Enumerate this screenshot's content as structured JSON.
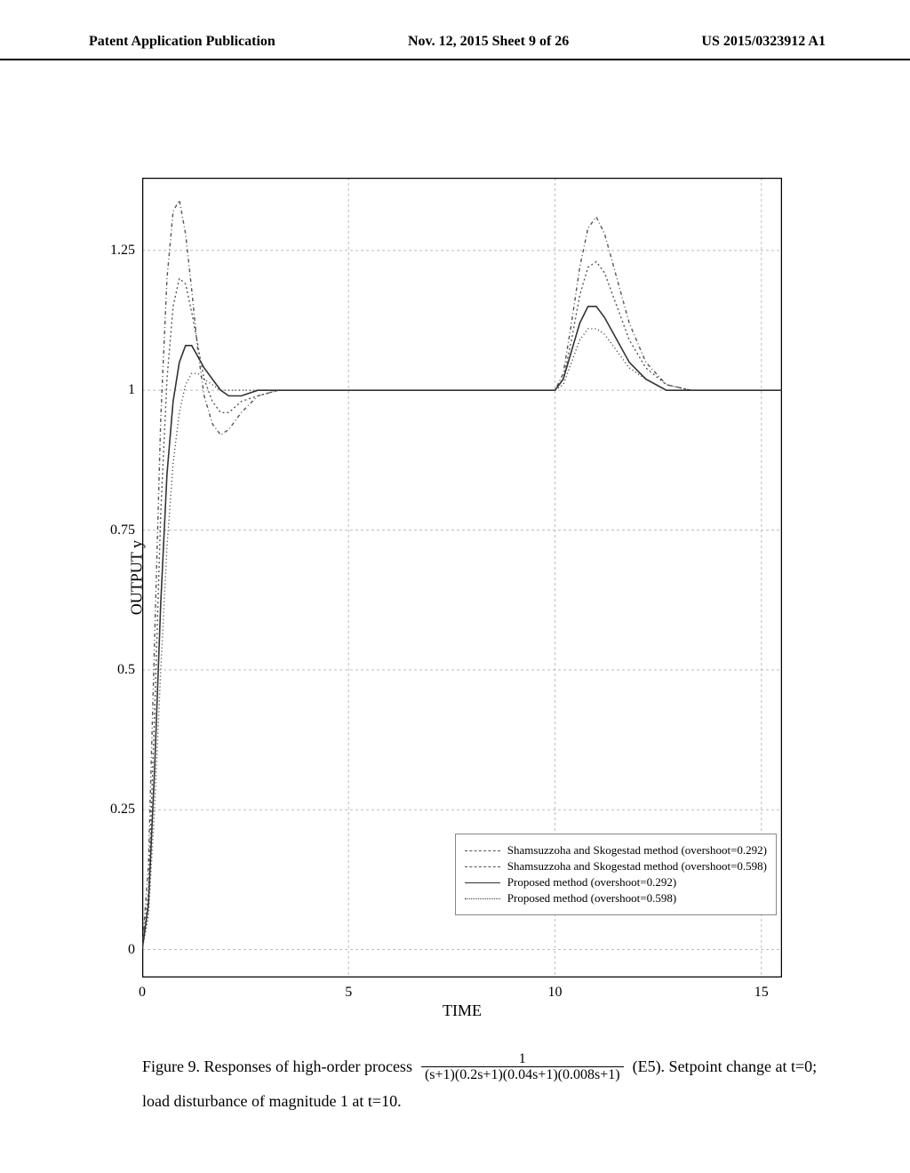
{
  "header": {
    "left": "Patent Application Publication",
    "center": "Nov. 12, 2015  Sheet 9 of 26",
    "right": "US 2015/0323912 A1"
  },
  "chart": {
    "type": "line",
    "x_label": "TIME",
    "y_label": "OUTPUT y",
    "xlim": [
      0,
      15.5
    ],
    "ylim": [
      -0.05,
      1.38
    ],
    "xticks": [
      0,
      5,
      10,
      15
    ],
    "yticks": [
      0,
      0.25,
      0.5,
      0.75,
      1,
      1.25
    ],
    "background_color": "#ffffff",
    "grid_color": "#bdbdbd",
    "grid_dash": "3,3",
    "axis_color": "#000000",
    "series": [
      {
        "name": "Shamsuzzoha and Skogestad method (overshoot=0.292)",
        "label": "Shamsuzzoha and Skogestad method (overshoot=0.292)",
        "color": "#555555",
        "width": 1.4,
        "dash": "4,3,1,3",
        "x": [
          0,
          0.15,
          0.3,
          0.45,
          0.6,
          0.75,
          0.9,
          1.05,
          1.2,
          1.35,
          1.5,
          1.7,
          1.9,
          2.1,
          2.4,
          2.8,
          3.3,
          4,
          5,
          6,
          7,
          8,
          9,
          9.8,
          10,
          10.2,
          10.4,
          10.6,
          10.8,
          11.0,
          11.2,
          11.5,
          11.8,
          12.2,
          12.7,
          13.3,
          14,
          15,
          15.5
        ],
        "y": [
          0,
          0.15,
          0.55,
          0.95,
          1.2,
          1.32,
          1.34,
          1.28,
          1.18,
          1.07,
          0.99,
          0.94,
          0.92,
          0.93,
          0.96,
          0.99,
          1.0,
          1.0,
          1.0,
          1.0,
          1.0,
          1.0,
          1.0,
          1.0,
          1.0,
          1.03,
          1.12,
          1.22,
          1.29,
          1.31,
          1.28,
          1.2,
          1.12,
          1.05,
          1.01,
          1.0,
          1.0,
          1.0,
          1.0
        ]
      },
      {
        "name": "Shamsuzzoha and Skogestad method (overshoot=0.598)",
        "label": "Shamsuzzoha and Skogestad method (overshoot=0.598)",
        "color": "#555555",
        "width": 1.4,
        "dash": "2,3",
        "x": [
          0,
          0.15,
          0.3,
          0.45,
          0.6,
          0.75,
          0.9,
          1.05,
          1.2,
          1.35,
          1.5,
          1.7,
          1.9,
          2.1,
          2.4,
          2.8,
          3.3,
          4,
          5,
          6,
          7,
          8,
          9,
          9.8,
          10,
          10.2,
          10.4,
          10.6,
          10.8,
          11.0,
          11.2,
          11.5,
          11.8,
          12.2,
          12.7,
          13.3,
          14,
          15,
          15.5
        ],
        "y": [
          0,
          0.1,
          0.42,
          0.78,
          1.02,
          1.15,
          1.2,
          1.19,
          1.14,
          1.08,
          1.02,
          0.98,
          0.96,
          0.96,
          0.98,
          0.99,
          1.0,
          1.0,
          1.0,
          1.0,
          1.0,
          1.0,
          1.0,
          1.0,
          1.0,
          1.02,
          1.09,
          1.17,
          1.22,
          1.23,
          1.21,
          1.15,
          1.09,
          1.04,
          1.01,
          1.0,
          1.0,
          1.0,
          1.0
        ]
      },
      {
        "name": "Proposed method (overshoot=0.292)",
        "label": "Proposed method (overshoot=0.292)",
        "color": "#333333",
        "width": 1.6,
        "dash": "none",
        "x": [
          0,
          0.15,
          0.3,
          0.45,
          0.6,
          0.75,
          0.9,
          1.05,
          1.2,
          1.35,
          1.5,
          1.7,
          1.9,
          2.1,
          2.4,
          2.8,
          3.3,
          4,
          5,
          6,
          7,
          8,
          9,
          9.8,
          10,
          10.2,
          10.4,
          10.6,
          10.8,
          11.0,
          11.2,
          11.5,
          11.8,
          12.2,
          12.7,
          13.3,
          14,
          15,
          15.5
        ],
        "y": [
          0,
          0.08,
          0.32,
          0.62,
          0.85,
          0.98,
          1.05,
          1.08,
          1.08,
          1.06,
          1.04,
          1.02,
          1.0,
          0.99,
          0.99,
          1.0,
          1.0,
          1.0,
          1.0,
          1.0,
          1.0,
          1.0,
          1.0,
          1.0,
          1.0,
          1.02,
          1.07,
          1.12,
          1.15,
          1.15,
          1.13,
          1.09,
          1.05,
          1.02,
          1.0,
          1.0,
          1.0,
          1.0,
          1.0
        ]
      },
      {
        "name": "Proposed method (overshoot=0.598)",
        "label": "Proposed method (overshoot=0.598)",
        "color": "#333333",
        "width": 1.4,
        "dash": "1,3",
        "x": [
          0,
          0.15,
          0.3,
          0.45,
          0.6,
          0.75,
          0.9,
          1.05,
          1.2,
          1.35,
          1.5,
          1.7,
          1.9,
          2.1,
          2.4,
          2.8,
          3.3,
          4,
          5,
          6,
          7,
          8,
          9,
          9.8,
          10,
          10.2,
          10.4,
          10.6,
          10.8,
          11.0,
          11.2,
          11.5,
          11.8,
          12.2,
          12.7,
          13.3,
          14,
          15,
          15.5
        ],
        "y": [
          0,
          0.06,
          0.25,
          0.5,
          0.72,
          0.87,
          0.96,
          1.01,
          1.03,
          1.03,
          1.02,
          1.01,
          1.0,
          1.0,
          1.0,
          1.0,
          1.0,
          1.0,
          1.0,
          1.0,
          1.0,
          1.0,
          1.0,
          1.0,
          1.0,
          1.01,
          1.05,
          1.09,
          1.11,
          1.11,
          1.1,
          1.07,
          1.04,
          1.02,
          1.0,
          1.0,
          1.0,
          1.0,
          1.0
        ]
      }
    ]
  },
  "caption": {
    "prefix": "Figure 9. Responses of high-order process",
    "frac_num": "1",
    "frac_den": "(s+1)(0.2s+1)(0.04s+1)(0.008s+1)",
    "tag": "(E5). Setpoint change at t=0;",
    "line2": "load disturbance of magnitude 1 at t=10."
  }
}
